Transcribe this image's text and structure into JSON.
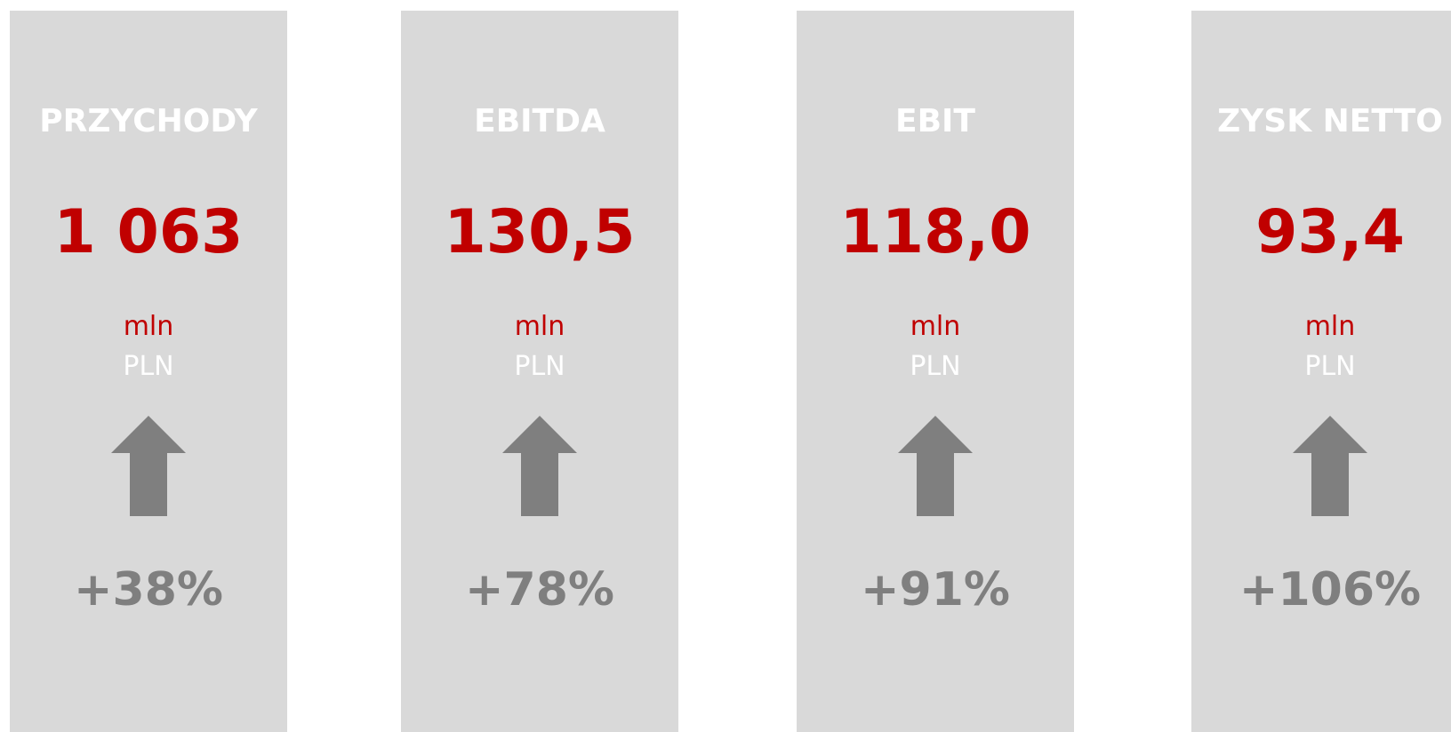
{
  "cards": [
    {
      "title": "PRZYCHODY",
      "value": "1 063",
      "unit": "mln",
      "currency": "PLN",
      "change": "+38%"
    },
    {
      "title": "EBITDA",
      "value": "130,5",
      "unit": "mln",
      "currency": "PLN",
      "change": "+78%"
    },
    {
      "title": "EBIT",
      "value": "118,0",
      "unit": "mln",
      "currency": "PLN",
      "change": "+91%"
    },
    {
      "title": "ZYSK NETTO",
      "value": "93,4",
      "unit": "mln",
      "currency": "PLN",
      "change": "+106%"
    }
  ]
}
